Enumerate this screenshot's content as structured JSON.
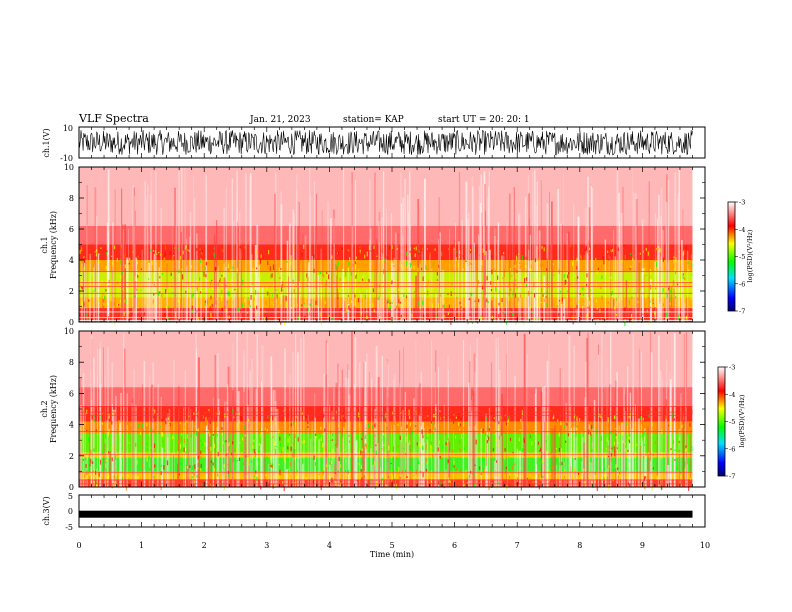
{
  "header": {
    "title": "VLF Spectra",
    "date": "Jan. 21, 2023",
    "station": "station= KAP",
    "start": "start  UT  =   20: 20: 1"
  },
  "chart_data": [
    {
      "type": "line",
      "id": "ch1-waveform",
      "ylabel": "ch.1(V)",
      "ylim": [
        -10,
        10
      ],
      "y_ticks": [
        "10",
        "-10"
      ],
      "xlim": [
        0,
        10
      ],
      "description_of_signal": "dense noisy waveform spanning roughly -8 to 8 V over 0 to 9.8 min"
    },
    {
      "type": "heatmap",
      "id": "ch1-spectrogram",
      "ylabel": "ch.1\nFrequency  (kHz)",
      "ylabel_line1": "ch.1",
      "ylabel_line2": "Frequency  (kHz)",
      "ylim": [
        0,
        10
      ],
      "y_ticks": [
        "0",
        "2",
        "4",
        "6",
        "8",
        "10"
      ],
      "xlim": [
        0,
        10
      ],
      "data_xmax": 9.8,
      "colorbar": {
        "label": "log(PSD)(V²/Hz)",
        "range": [
          -7,
          -3
        ],
        "ticks": [
          "-3",
          "-4",
          "-5",
          "-6",
          "-7"
        ],
        "colors": [
          "#000080",
          "#0000ff",
          "#00ffff",
          "#00ff00",
          "#ffff00",
          "#ff0000",
          "#ffffff"
        ]
      }
    },
    {
      "type": "heatmap",
      "id": "ch2-spectrogram",
      "ylabel_line1": "ch.2",
      "ylabel_line2": "Frequency  (kHz)",
      "ylim": [
        0,
        10
      ],
      "y_ticks": [
        "0",
        "2",
        "4",
        "6",
        "8",
        "10"
      ],
      "xlim": [
        0,
        10
      ],
      "data_xmax": 9.8,
      "colorbar": {
        "label": "log(PSD)(V²/Hz)",
        "range": [
          -7,
          -3
        ],
        "ticks": [
          "-3",
          "-4",
          "-5",
          "-6",
          "-7"
        ]
      }
    },
    {
      "type": "line",
      "id": "ch3-waveform",
      "ylabel": "ch.3(V)",
      "ylim": [
        -5,
        5
      ],
      "y_ticks": [
        "5",
        "0",
        "-5"
      ],
      "xlim": [
        0,
        10
      ],
      "value_approx": -1
    }
  ],
  "xaxis": {
    "label": "Time  (min)",
    "ticks": [
      "0",
      "1",
      "2",
      "3",
      "4",
      "5",
      "6",
      "7",
      "8",
      "9",
      "10"
    ]
  }
}
